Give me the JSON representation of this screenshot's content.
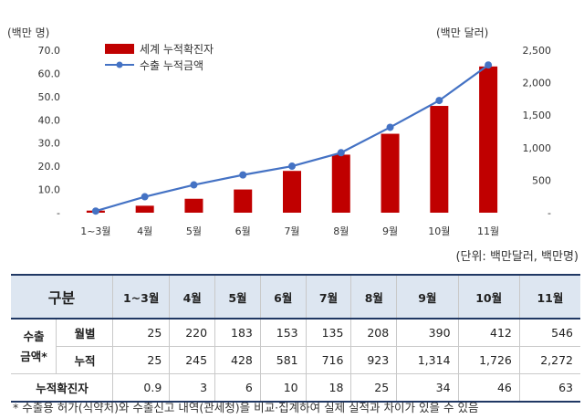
{
  "chart_data": {
    "type": "bar",
    "categories": [
      "1~3월",
      "4월",
      "5월",
      "6월",
      "7월",
      "8월",
      "9월",
      "10월",
      "11월"
    ],
    "series": [
      {
        "name": "세계 누적확진자",
        "type": "bar",
        "axis": "left",
        "values": [
          0.9,
          3,
          6,
          10,
          18,
          25,
          34,
          46,
          63
        ],
        "color": "#c00000"
      },
      {
        "name": "수출 누적금액",
        "type": "line",
        "axis": "right",
        "values": [
          25,
          245,
          428,
          581,
          716,
          923,
          1314,
          1726,
          2272
        ],
        "color": "#4472c4"
      }
    ],
    "left_unit": "(백만 명)",
    "right_unit": "(백만 달러)",
    "left_ylim": [
      0,
      70
    ],
    "left_ticks": [
      "-",
      "10.0",
      "20.0",
      "30.0",
      "40.0",
      "50.0",
      "60.0",
      "70.0"
    ],
    "right_ylim": [
      0,
      2500
    ],
    "right_ticks": [
      "-",
      "500",
      "1,000",
      "1,500",
      "2,000",
      "2,500"
    ],
    "legend_position": "top-left"
  },
  "unit_note": "(단위: 백만달러, 백만명)",
  "table": {
    "header": [
      "구분",
      "1~3월",
      "4월",
      "5월",
      "6월",
      "7월",
      "8월",
      "9월",
      "10월",
      "11월"
    ],
    "export_group_label_line1": "수출",
    "export_group_label_line2": "금액*",
    "rows": [
      {
        "label": "월별",
        "values": [
          "25",
          "220",
          "183",
          "153",
          "135",
          "208",
          "390",
          "412",
          "546"
        ]
      },
      {
        "label": "누적",
        "values": [
          "25",
          "245",
          "428",
          "581",
          "716",
          "923",
          "1,314",
          "1,726",
          "2,272"
        ]
      },
      {
        "label": "누적확진자",
        "values": [
          "0.9",
          "3",
          "6",
          "10",
          "18",
          "25",
          "34",
          "46",
          "63"
        ]
      }
    ]
  },
  "footnote": "* 수출용 허가(식약처)와 수출신고 내역(관세청)을 비교·집계하여 실제 실적과 차이가 있을 수 있음"
}
